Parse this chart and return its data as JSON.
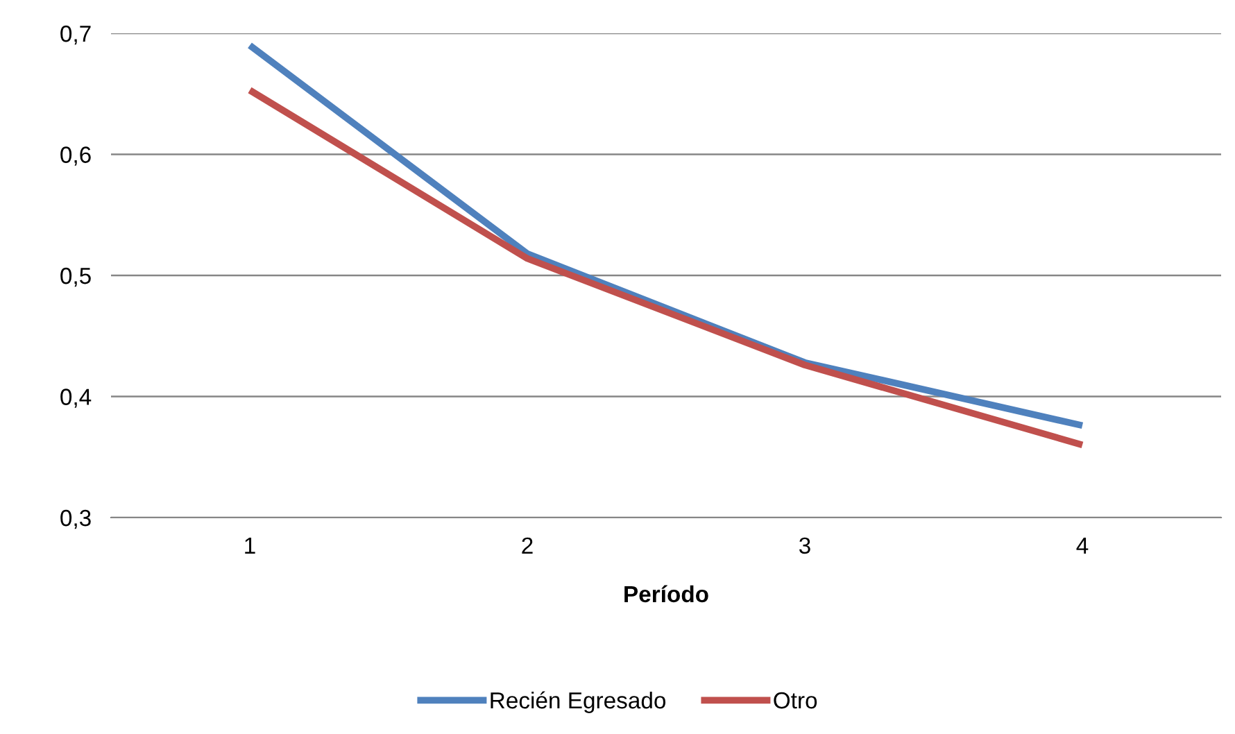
{
  "chart_data": {
    "type": "line",
    "xlabel": "Período",
    "categories": [
      "1",
      "2",
      "3",
      "4"
    ],
    "series": [
      {
        "name": "Recién Egresado",
        "color": "#4f81bd",
        "values": [
          0.69,
          0.518,
          0.428,
          0.376
        ]
      },
      {
        "name": "Otro",
        "color": "#c0504d",
        "values": [
          0.653,
          0.514,
          0.426,
          0.36
        ]
      }
    ],
    "ylim": [
      0.3,
      0.7
    ],
    "yticks": [
      {
        "value": 0.3,
        "label": "0,3"
      },
      {
        "value": 0.4,
        "label": "0,4"
      },
      {
        "value": 0.5,
        "label": "0,5"
      },
      {
        "value": 0.6,
        "label": "0,6"
      },
      {
        "value": 0.7,
        "label": "0,7"
      }
    ],
    "grid": "y",
    "legend": "bottom",
    "marker": "none",
    "line_style": "solid"
  }
}
